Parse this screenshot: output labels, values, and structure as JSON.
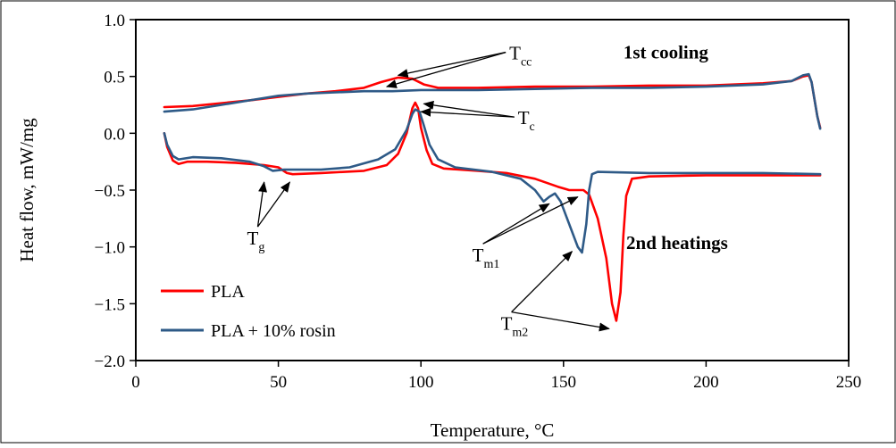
{
  "chart_data": {
    "type": "line",
    "xlabel": "Temperature, °C",
    "ylabel": "Heat flow, mW/mg",
    "xlim": [
      0,
      250
    ],
    "ylim": [
      -2.0,
      1.0
    ],
    "x_ticks": [
      "0",
      "50",
      "100",
      "150",
      "200",
      "250"
    ],
    "y_ticks": [
      "1.0",
      "0.5",
      "0.0",
      "−0.5",
      "−1.0",
      "−1.5",
      "−2.0"
    ],
    "grid": false,
    "legend_position": "bottom-left",
    "series": [
      {
        "name": "PLA",
        "color": "#ff0000",
        "segments": [
          {
            "label": "cooling",
            "points": [
              [
                10,
                0.23
              ],
              [
                20,
                0.24
              ],
              [
                40,
                0.29
              ],
              [
                50,
                0.32
              ],
              [
                60,
                0.35
              ],
              [
                70,
                0.37
              ],
              [
                80,
                0.4
              ],
              [
                86,
                0.45
              ],
              [
                92,
                0.49
              ],
              [
                97,
                0.48
              ],
              [
                101,
                0.43
              ],
              [
                106,
                0.4
              ],
              [
                120,
                0.4
              ],
              [
                140,
                0.41
              ],
              [
                160,
                0.41
              ],
              [
                180,
                0.42
              ],
              [
                200,
                0.42
              ],
              [
                220,
                0.44
              ],
              [
                230,
                0.46
              ],
              [
                234,
                0.5
              ],
              [
                236,
                0.51
              ],
              [
                237,
                0.45
              ],
              [
                238,
                0.3
              ],
              [
                239,
                0.15
              ],
              [
                240,
                0.05
              ]
            ]
          },
          {
            "label": "heating",
            "points": [
              [
                10,
                0.0
              ],
              [
                11,
                -0.12
              ],
              [
                13,
                -0.24
              ],
              [
                15,
                -0.27
              ],
              [
                18,
                -0.25
              ],
              [
                25,
                -0.25
              ],
              [
                35,
                -0.26
              ],
              [
                45,
                -0.28
              ],
              [
                50,
                -0.3
              ],
              [
                53,
                -0.35
              ],
              [
                55,
                -0.36
              ],
              [
                65,
                -0.35
              ],
              [
                80,
                -0.33
              ],
              [
                88,
                -0.28
              ],
              [
                92,
                -0.18
              ],
              [
                95,
                0.0
              ],
              [
                97,
                0.22
              ],
              [
                98,
                0.27
              ],
              [
                99,
                0.22
              ],
              [
                100,
                0.05
              ],
              [
                102,
                -0.15
              ],
              [
                104,
                -0.27
              ],
              [
                108,
                -0.31
              ],
              [
                120,
                -0.33
              ],
              [
                130,
                -0.35
              ],
              [
                140,
                -0.4
              ],
              [
                148,
                -0.47
              ],
              [
                152,
                -0.5
              ],
              [
                157,
                -0.5
              ],
              [
                159,
                -0.54
              ],
              [
                162,
                -0.75
              ],
              [
                165,
                -1.1
              ],
              [
                167,
                -1.5
              ],
              [
                168.5,
                -1.65
              ],
              [
                170,
                -1.4
              ],
              [
                171,
                -0.9
              ],
              [
                172,
                -0.55
              ],
              [
                174,
                -0.4
              ],
              [
                180,
                -0.38
              ],
              [
                200,
                -0.37
              ],
              [
                220,
                -0.37
              ],
              [
                240,
                -0.37
              ]
            ]
          }
        ]
      },
      {
        "name": "PLA + 10% rosin",
        "color": "#2e5a87",
        "segments": [
          {
            "label": "cooling",
            "points": [
              [
                10,
                0.19
              ],
              [
                20,
                0.21
              ],
              [
                30,
                0.25
              ],
              [
                40,
                0.29
              ],
              [
                50,
                0.33
              ],
              [
                60,
                0.35
              ],
              [
                70,
                0.36
              ],
              [
                80,
                0.37
              ],
              [
                90,
                0.37
              ],
              [
                100,
                0.38
              ],
              [
                120,
                0.38
              ],
              [
                140,
                0.39
              ],
              [
                160,
                0.4
              ],
              [
                180,
                0.4
              ],
              [
                200,
                0.41
              ],
              [
                220,
                0.43
              ],
              [
                230,
                0.46
              ],
              [
                234,
                0.51
              ],
              [
                236,
                0.52
              ],
              [
                237,
                0.45
              ],
              [
                238,
                0.3
              ],
              [
                239,
                0.15
              ],
              [
                240,
                0.04
              ]
            ]
          },
          {
            "label": "heating",
            "points": [
              [
                10,
                0.0
              ],
              [
                11,
                -0.1
              ],
              [
                13,
                -0.2
              ],
              [
                15,
                -0.23
              ],
              [
                20,
                -0.21
              ],
              [
                30,
                -0.22
              ],
              [
                40,
                -0.25
              ],
              [
                45,
                -0.29
              ],
              [
                48,
                -0.33
              ],
              [
                52,
                -0.32
              ],
              [
                65,
                -0.32
              ],
              [
                75,
                -0.3
              ],
              [
                85,
                -0.23
              ],
              [
                91,
                -0.14
              ],
              [
                95,
                0.03
              ],
              [
                97,
                0.17
              ],
              [
                98,
                0.21
              ],
              [
                99.5,
                0.19
              ],
              [
                101,
                0.07
              ],
              [
                103,
                -0.1
              ],
              [
                106,
                -0.23
              ],
              [
                112,
                -0.3
              ],
              [
                125,
                -0.34
              ],
              [
                135,
                -0.4
              ],
              [
                140,
                -0.5
              ],
              [
                143,
                -0.6
              ],
              [
                145,
                -0.56
              ],
              [
                147,
                -0.53
              ],
              [
                149,
                -0.6
              ],
              [
                152,
                -0.8
              ],
              [
                155,
                -1.0
              ],
              [
                156.5,
                -1.05
              ],
              [
                158,
                -0.8
              ],
              [
                159,
                -0.5
              ],
              [
                160,
                -0.36
              ],
              [
                162,
                -0.34
              ],
              [
                180,
                -0.35
              ],
              [
                200,
                -0.35
              ],
              [
                220,
                -0.35
              ],
              [
                240,
                -0.36
              ]
            ]
          }
        ]
      }
    ],
    "annotations": [
      {
        "main": "T",
        "sub": "cc",
        "x": 131,
        "y": 0.65,
        "arrows": [
          [
            92,
            0.51
          ],
          [
            88,
            0.41
          ]
        ]
      },
      {
        "main": "T",
        "sub": "c",
        "x": 134,
        "y": 0.08,
        "arrows": [
          [
            101,
            0.26
          ],
          [
            100,
            0.19
          ]
        ]
      },
      {
        "main": "T",
        "sub": "g",
        "x": 39,
        "y": -0.98,
        "arrows": [
          [
            45,
            -0.43
          ],
          [
            54,
            -0.43
          ]
        ]
      },
      {
        "main": "T",
        "sub": "m1",
        "x": 118,
        "y": -1.13,
        "arrows": [
          [
            145,
            -0.62
          ],
          [
            155,
            -0.56
          ]
        ]
      },
      {
        "main": "T",
        "sub": "m2",
        "x": 128,
        "y": -1.73,
        "arrows": [
          [
            153,
            -1.04
          ],
          [
            166,
            -1.72
          ]
        ]
      }
    ],
    "region_labels": [
      {
        "text": "1st cooling",
        "x": 171,
        "y": 0.66
      },
      {
        "text": "2nd heatings",
        "x": 172,
        "y": -1.02
      }
    ]
  }
}
